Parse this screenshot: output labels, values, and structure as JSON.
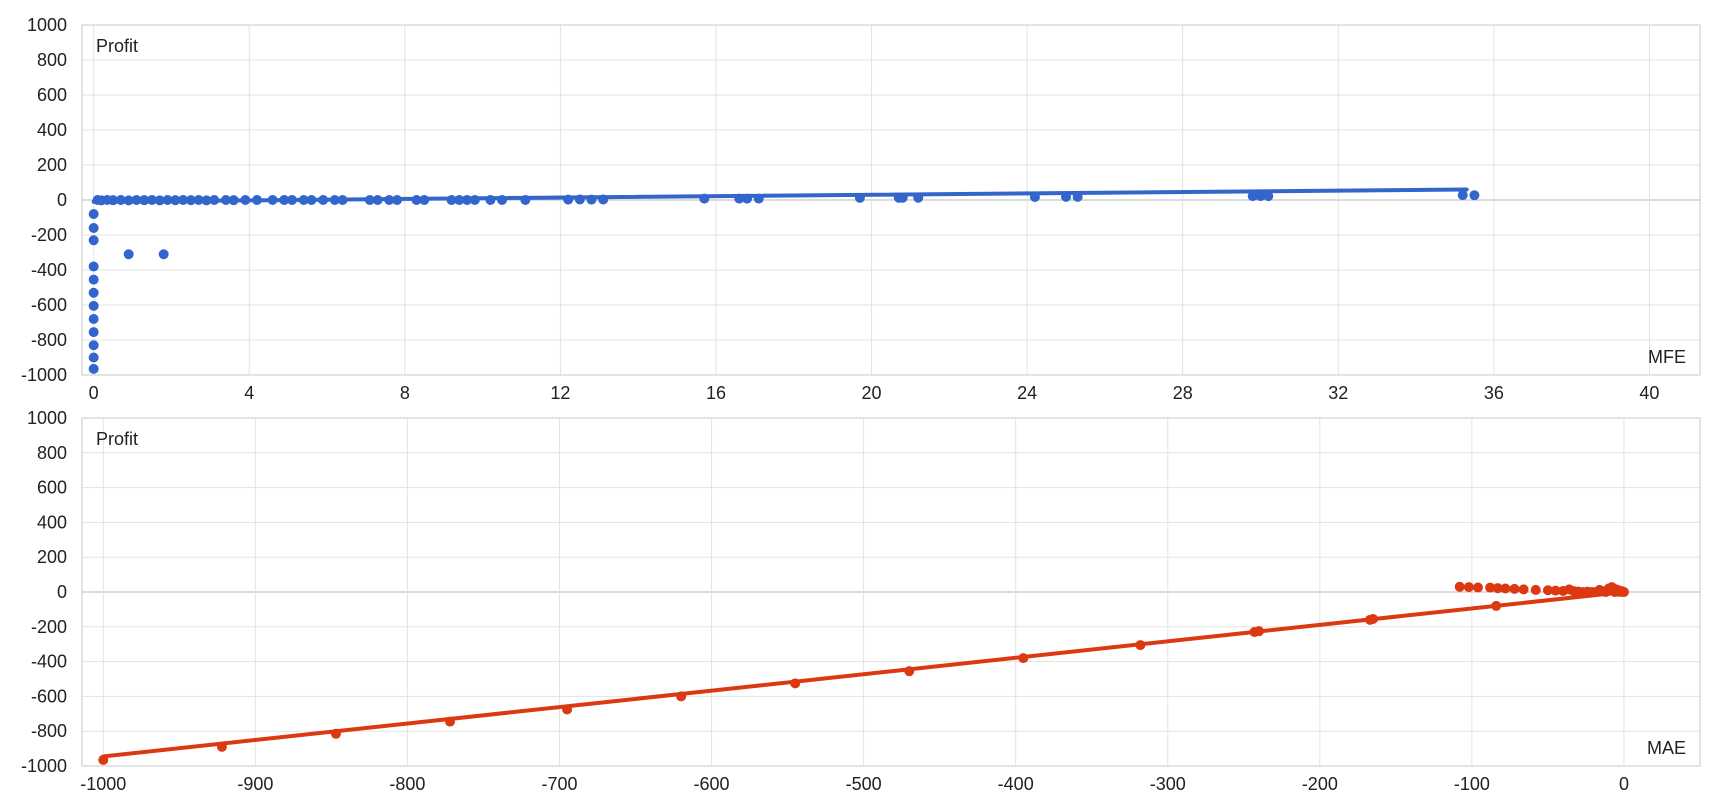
{
  "chart_data": [
    {
      "type": "scatter",
      "ylabel": "Profit",
      "xlabel": "MFE",
      "xlim": [
        -0.3,
        41.3
      ],
      "ylim": [
        -1000,
        1000
      ],
      "xticks": [
        0,
        4,
        8,
        12,
        16,
        20,
        24,
        28,
        32,
        36,
        40
      ],
      "yticks": [
        1000,
        800,
        600,
        400,
        200,
        0,
        -200,
        -400,
        -600,
        -800,
        -1000
      ],
      "grid": true,
      "color": "#3366cc",
      "trendline": {
        "x": [
          0,
          35.3
        ],
        "y": [
          -10,
          60
        ]
      },
      "points": [
        {
          "x": 0,
          "y": -80
        },
        {
          "x": 0,
          "y": -160
        },
        {
          "x": 0,
          "y": -230
        },
        {
          "x": 0,
          "y": -380
        },
        {
          "x": 0,
          "y": -455
        },
        {
          "x": 0,
          "y": -530
        },
        {
          "x": 0,
          "y": -605
        },
        {
          "x": 0,
          "y": -680
        },
        {
          "x": 0,
          "y": -755
        },
        {
          "x": 0,
          "y": -830
        },
        {
          "x": 0,
          "y": -900
        },
        {
          "x": 0,
          "y": -965
        },
        {
          "x": 0.9,
          "y": -310
        },
        {
          "x": 1.8,
          "y": -310
        },
        {
          "x": 0.1,
          "y": 0
        },
        {
          "x": 0.2,
          "y": -2
        },
        {
          "x": 0.35,
          "y": 0
        },
        {
          "x": 0.5,
          "y": -1
        },
        {
          "x": 0.7,
          "y": 0
        },
        {
          "x": 0.9,
          "y": -2
        },
        {
          "x": 1.1,
          "y": 0
        },
        {
          "x": 1.3,
          "y": -1
        },
        {
          "x": 1.5,
          "y": 0
        },
        {
          "x": 1.7,
          "y": -2
        },
        {
          "x": 1.9,
          "y": 0
        },
        {
          "x": 2.1,
          "y": -1
        },
        {
          "x": 2.3,
          "y": 0
        },
        {
          "x": 2.5,
          "y": -1
        },
        {
          "x": 2.7,
          "y": 0
        },
        {
          "x": 2.9,
          "y": -2
        },
        {
          "x": 3.1,
          "y": 0
        },
        {
          "x": 3.4,
          "y": 0
        },
        {
          "x": 3.6,
          "y": -1
        },
        {
          "x": 3.9,
          "y": 0
        },
        {
          "x": 4.2,
          "y": 0
        },
        {
          "x": 4.6,
          "y": 0
        },
        {
          "x": 4.9,
          "y": 0
        },
        {
          "x": 5.1,
          "y": 0
        },
        {
          "x": 5.4,
          "y": 0
        },
        {
          "x": 5.6,
          "y": 0
        },
        {
          "x": 5.9,
          "y": 0
        },
        {
          "x": 6.2,
          "y": 0
        },
        {
          "x": 6.4,
          "y": 0
        },
        {
          "x": 7.1,
          "y": 0
        },
        {
          "x": 7.3,
          "y": 0
        },
        {
          "x": 7.6,
          "y": 0
        },
        {
          "x": 7.8,
          "y": 0
        },
        {
          "x": 8.3,
          "y": 0
        },
        {
          "x": 8.5,
          "y": 0
        },
        {
          "x": 9.2,
          "y": 0
        },
        {
          "x": 9.4,
          "y": 0
        },
        {
          "x": 9.6,
          "y": 0
        },
        {
          "x": 9.8,
          "y": 0
        },
        {
          "x": 10.2,
          "y": 0
        },
        {
          "x": 10.5,
          "y": 0
        },
        {
          "x": 11.1,
          "y": 0
        },
        {
          "x": 12.2,
          "y": 2
        },
        {
          "x": 12.5,
          "y": 3
        },
        {
          "x": 12.8,
          "y": 2
        },
        {
          "x": 13.1,
          "y": 3
        },
        {
          "x": 15.7,
          "y": 8
        },
        {
          "x": 16.6,
          "y": 8
        },
        {
          "x": 16.8,
          "y": 8
        },
        {
          "x": 17.1,
          "y": 8
        },
        {
          "x": 19.7,
          "y": 12
        },
        {
          "x": 20.7,
          "y": 13
        },
        {
          "x": 20.8,
          "y": 13
        },
        {
          "x": 21.2,
          "y": 13
        },
        {
          "x": 24.2,
          "y": 17
        },
        {
          "x": 25.0,
          "y": 18
        },
        {
          "x": 25.3,
          "y": 18
        },
        {
          "x": 29.8,
          "y": 22
        },
        {
          "x": 30.0,
          "y": 22
        },
        {
          "x": 30.2,
          "y": 22
        },
        {
          "x": 35.2,
          "y": 28
        },
        {
          "x": 35.5,
          "y": 27
        }
      ]
    },
    {
      "type": "scatter",
      "ylabel": "Profit",
      "xlabel": "MAE",
      "xlim": [
        -1014,
        50
      ],
      "ylim": [
        -1000,
        1000
      ],
      "xticks": [
        -1000,
        -900,
        -800,
        -700,
        -600,
        -500,
        -400,
        -300,
        -200,
        -100,
        0
      ],
      "yticks": [
        1000,
        800,
        600,
        400,
        200,
        0,
        -200,
        -400,
        -600,
        -800,
        -1000
      ],
      "grid": true,
      "color": "#dc3912",
      "trendline": {
        "x": [
          -1000,
          0
        ],
        "y": [
          -945,
          0
        ]
      },
      "points": [
        {
          "x": -1000,
          "y": -965
        },
        {
          "x": -922,
          "y": -890
        },
        {
          "x": -847,
          "y": -815
        },
        {
          "x": -772,
          "y": -745
        },
        {
          "x": -695,
          "y": -675
        },
        {
          "x": -620,
          "y": -600
        },
        {
          "x": -545,
          "y": -525
        },
        {
          "x": -470,
          "y": -455
        },
        {
          "x": -395,
          "y": -380
        },
        {
          "x": -318,
          "y": -305
        },
        {
          "x": -243,
          "y": -230
        },
        {
          "x": -240,
          "y": -225
        },
        {
          "x": -167,
          "y": -160
        },
        {
          "x": -165,
          "y": -155
        },
        {
          "x": -84,
          "y": -80
        },
        {
          "x": -108,
          "y": 30
        },
        {
          "x": -102,
          "y": 28
        },
        {
          "x": -96,
          "y": 26
        },
        {
          "x": -88,
          "y": 25
        },
        {
          "x": -83,
          "y": 22
        },
        {
          "x": -78,
          "y": 20
        },
        {
          "x": -72,
          "y": 18
        },
        {
          "x": -66,
          "y": 15
        },
        {
          "x": -58,
          "y": 12
        },
        {
          "x": -50,
          "y": 10
        },
        {
          "x": -45,
          "y": 8
        },
        {
          "x": -40,
          "y": 6
        },
        {
          "x": -36,
          "y": 15
        },
        {
          "x": -33,
          "y": 5
        },
        {
          "x": -30,
          "y": 3
        },
        {
          "x": -27,
          "y": 0
        },
        {
          "x": -24,
          "y": 2
        },
        {
          "x": -21,
          "y": 0
        },
        {
          "x": -18,
          "y": 1
        },
        {
          "x": -16,
          "y": 12
        },
        {
          "x": -14,
          "y": 4
        },
        {
          "x": -12,
          "y": 0
        },
        {
          "x": -10,
          "y": 20
        },
        {
          "x": -8,
          "y": 28
        },
        {
          "x": -7,
          "y": 5
        },
        {
          "x": -6,
          "y": 0
        },
        {
          "x": -5,
          "y": 15
        },
        {
          "x": -4,
          "y": 2
        },
        {
          "x": -3,
          "y": 8
        },
        {
          "x": -2,
          "y": 0
        },
        {
          "x": -1,
          "y": 4
        },
        {
          "x": 0,
          "y": 0
        }
      ]
    }
  ]
}
